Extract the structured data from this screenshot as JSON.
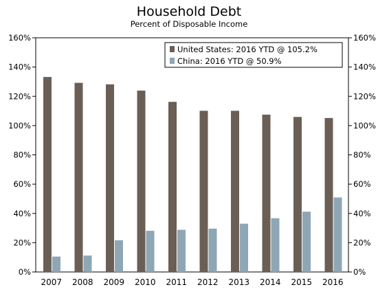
{
  "chart_data": {
    "type": "bar",
    "title": "Household Debt",
    "subtitle": "Percent of Disposable Income",
    "categories": [
      "2007",
      "2008",
      "2009",
      "2010",
      "2011",
      "2012",
      "2013",
      "2014",
      "2015",
      "2016"
    ],
    "series": [
      {
        "name": "United States: 2016 YTD @ 105.2%",
        "color": "#6b5f55",
        "values": [
          133.2,
          129.2,
          128.2,
          123.9,
          116.2,
          110.1,
          110.1,
          107.5,
          105.9,
          105.2
        ]
      },
      {
        "name": "China: 2016 YTD @ 50.9%",
        "color": "#8fa6b5",
        "values": [
          10.5,
          11.2,
          21.7,
          28.1,
          28.8,
          29.6,
          33.0,
          36.7,
          41.2,
          50.9
        ]
      }
    ],
    "ylim": [
      0,
      160
    ],
    "yticks": [
      "0%",
      "20%",
      "40%",
      "60%",
      "80%",
      "100%",
      "120%",
      "140%",
      "160%"
    ],
    "secondary_axis": true,
    "legend": "top-right",
    "grid": false
  }
}
